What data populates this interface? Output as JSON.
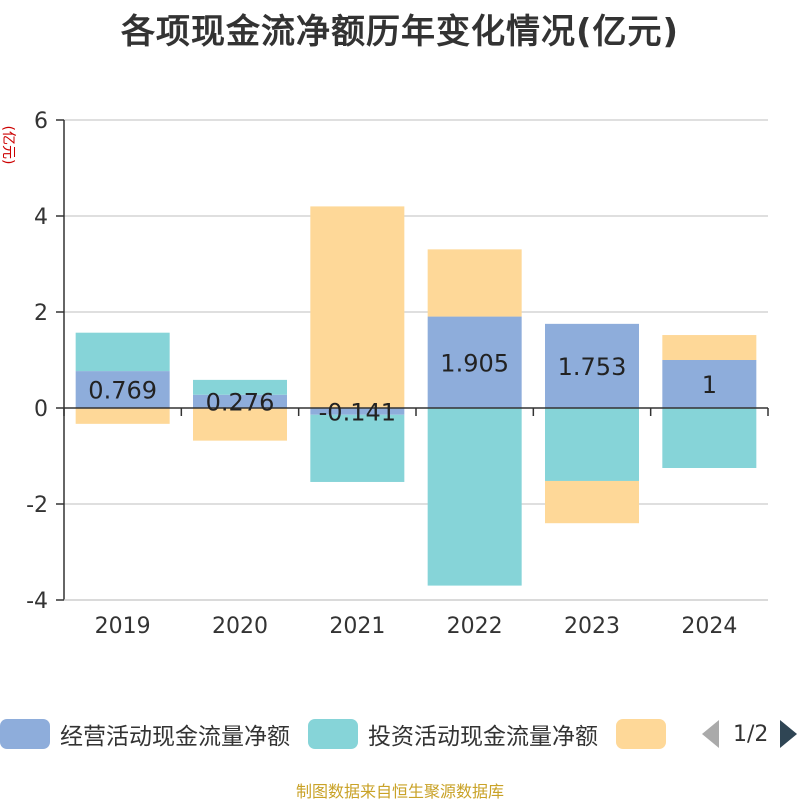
{
  "chart_data": {
    "type": "bar",
    "stacked": true,
    "title": "各项现金流净额历年变化情况(亿元)",
    "ylabel": "(亿元)",
    "xlabel": "",
    "categories": [
      "2019",
      "2020",
      "2021",
      "2022",
      "2023",
      "2024"
    ],
    "ylim": [
      -4,
      6
    ],
    "yticks": [
      6,
      4,
      2,
      0,
      -2,
      -4
    ],
    "grid": true,
    "series": [
      {
        "name": "经营活动现金流量净额",
        "color": "#8eaddb",
        "values": [
          0.769,
          0.276,
          -0.141,
          1.905,
          1.753,
          1
        ],
        "show_labels": true
      },
      {
        "name": "投资活动现金流量净额",
        "color": "#86d4d8",
        "values": [
          0.8,
          0.31,
          -1.4,
          -3.7,
          -1.52,
          -1.25
        ],
        "show_labels": false
      },
      {
        "name": "",
        "color": "#fed898",
        "values": [
          -0.33,
          -0.68,
          4.2,
          1.4,
          -0.88,
          0.52
        ],
        "show_labels": false
      }
    ],
    "data_labels": [
      "0.769",
      "0.276",
      "-0.141",
      "1.905",
      "1.753",
      "1"
    ],
    "legend_position": "bottom"
  },
  "legend": {
    "items": [
      "经营活动现金流量净额",
      "投资活动现金流量净额",
      ""
    ],
    "page": "1/2"
  },
  "source_note": "制图数据来自恒生聚源数据库"
}
